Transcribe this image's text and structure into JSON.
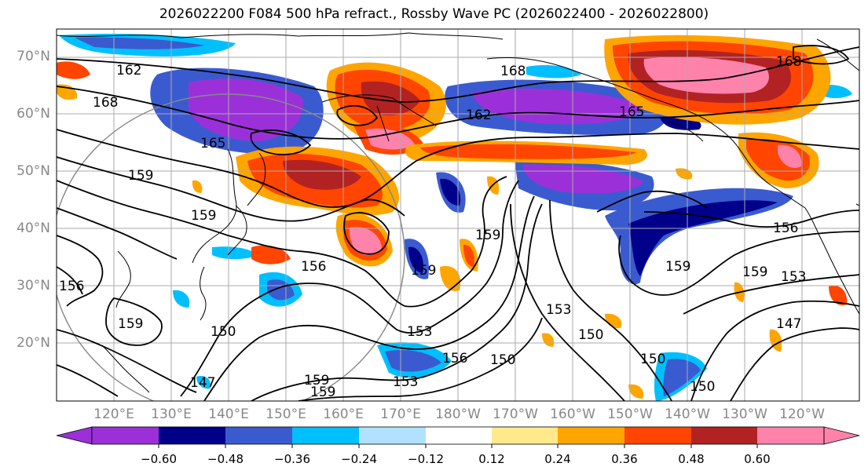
{
  "title": "2026022200 F084 500 hPa refract., Rossby Wave PC (2026022400 - 2026022800)",
  "lat_labels": [
    "70°N",
    "60°N",
    "50°N",
    "40°N",
    "30°N",
    "20°N"
  ],
  "lon_labels": [
    "120°E",
    "130°E",
    "140°E",
    "150°E",
    "160°E",
    "170°E",
    "180°W",
    "170°W",
    "160°W",
    "150°W",
    "140°W",
    "130°W",
    "120°W"
  ],
  "colorbar": {
    "ticks": [
      "−0.60",
      "−0.48",
      "−0.36",
      "−0.24",
      "−0.12",
      "0.12",
      "0.24",
      "0.36",
      "0.48",
      "0.60"
    ],
    "colors": [
      "#9b30d9",
      "#00008b",
      "#3a5bd0",
      "#00bfff",
      "#b0e2ff",
      "#ffffff",
      "#ffe98a",
      "#ffa500",
      "#ff4500",
      "#b22222",
      "#ff82ab",
      "#ff82ab"
    ]
  },
  "contour_labels": [
    "162",
    "168",
    "168",
    "162",
    "165",
    "168",
    "165",
    "159",
    "159",
    "156",
    "159",
    "156",
    "159",
    "159",
    "150",
    "153",
    "153",
    "156",
    "153",
    "150",
    "150",
    "159",
    "150",
    "159",
    "147",
    "156",
    "159",
    "153",
    "147",
    "159",
    "150"
  ]
}
